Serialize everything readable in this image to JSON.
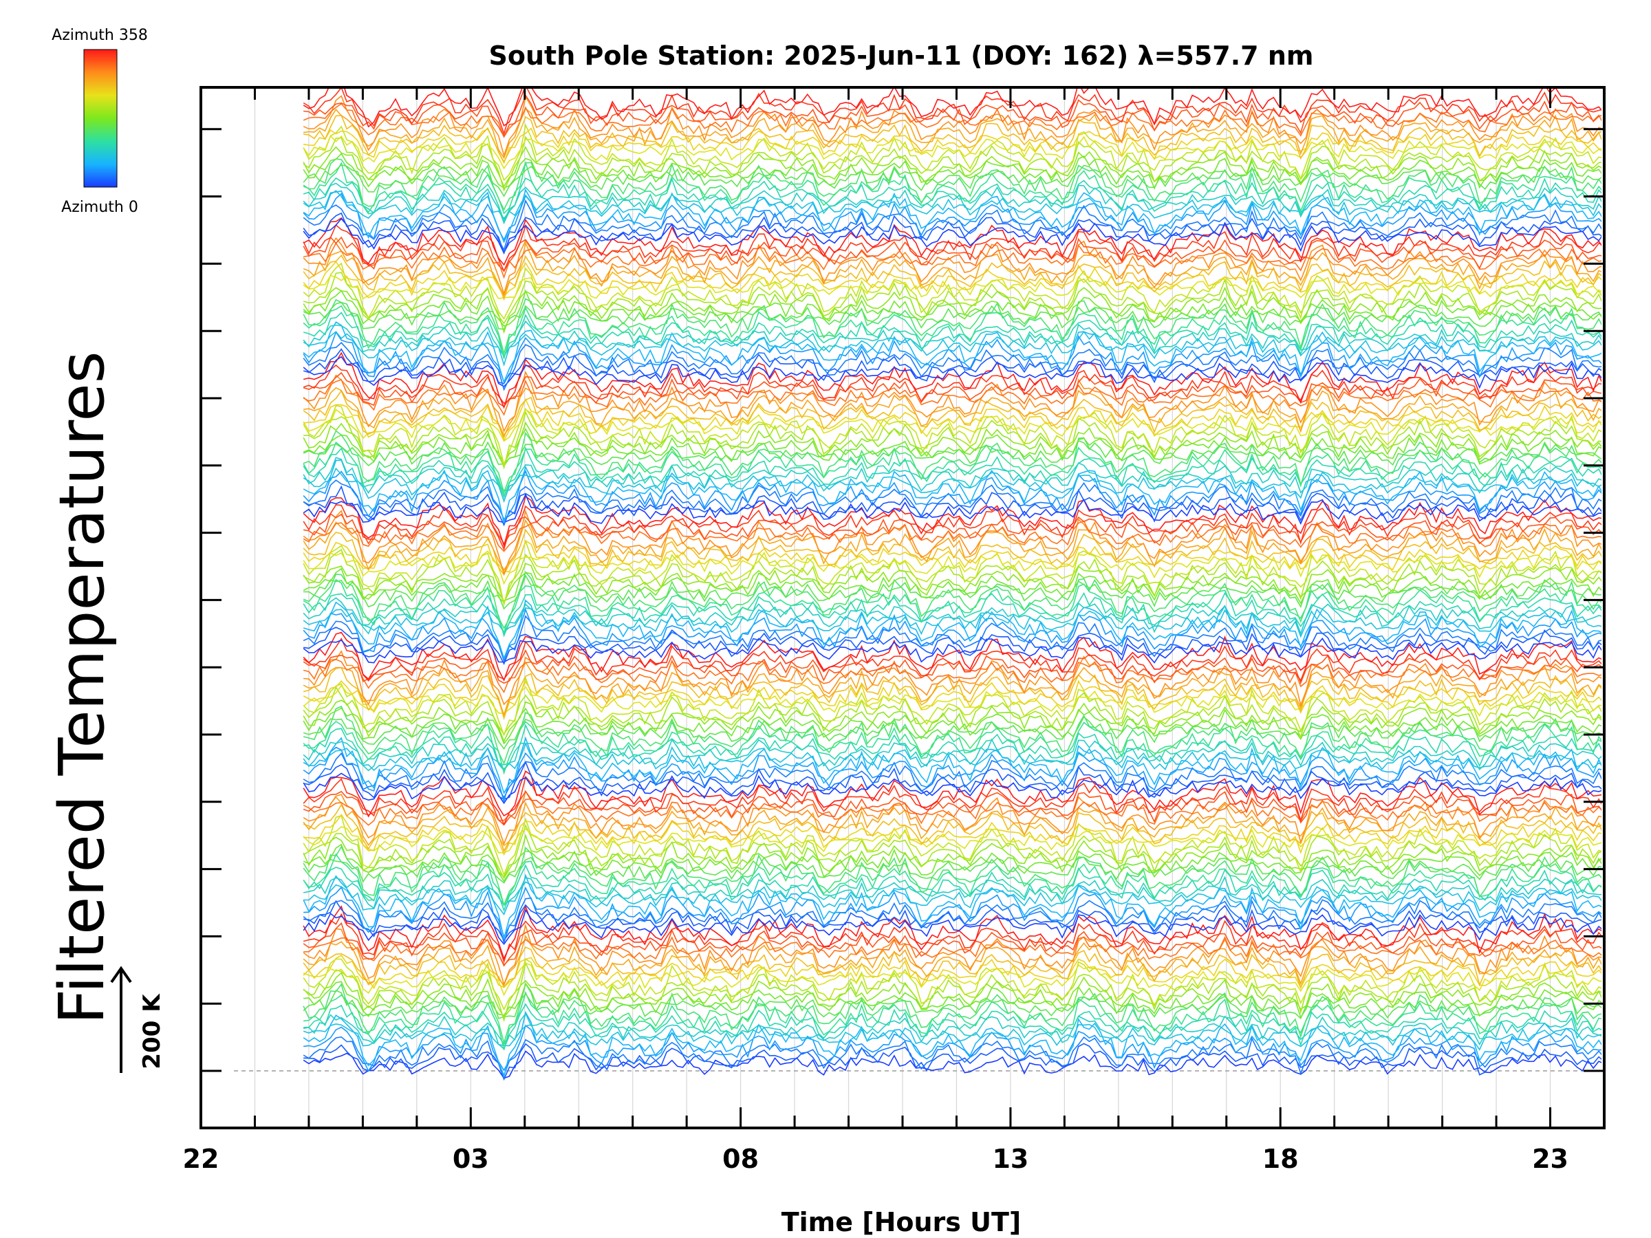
{
  "chart_data": {
    "type": "line",
    "title": "South Pole Station: 2025-Jun-11 (DOY: 162) λ=557.7 nm",
    "xlabel": "Time [Hours UT]",
    "ylabel": "Filtered Temperatures",
    "x_tick_labels": [
      "22",
      "03",
      "08",
      "13",
      "18",
      "23"
    ],
    "x_tick_values_hours_since_22UT": [
      0,
      5,
      10,
      15,
      20,
      25
    ],
    "xlim_hours_since_22UT": [
      0,
      26
    ],
    "data_start_hours_since_22UT": 1.9,
    "data_end_hours_since_22UT": 26,
    "colorbar": {
      "top_label": "Azimuth 358",
      "bottom_label": "Azimuth 0",
      "min": 0,
      "max": 358,
      "colormap": [
        "#1a3cff",
        "#18b4ff",
        "#2ee0a0",
        "#7ce81e",
        "#e8e21a",
        "#ff8c1a",
        "#ff1a1a"
      ]
    },
    "stack_groups": 7,
    "traces_per_group": 24,
    "scale_bar_label": "200 K",
    "baseline_dashed": true,
    "vertical_grid": true,
    "spike_hours_since_22UT": [
      2.5,
      3.1,
      5.3,
      5.6,
      6.0,
      8.5,
      16.3,
      17.0,
      19.5,
      20.4,
      25.4
    ],
    "note_values": "traces are stacked filtered temperature perturbations per azimuth; individual values not labeled on chart"
  }
}
